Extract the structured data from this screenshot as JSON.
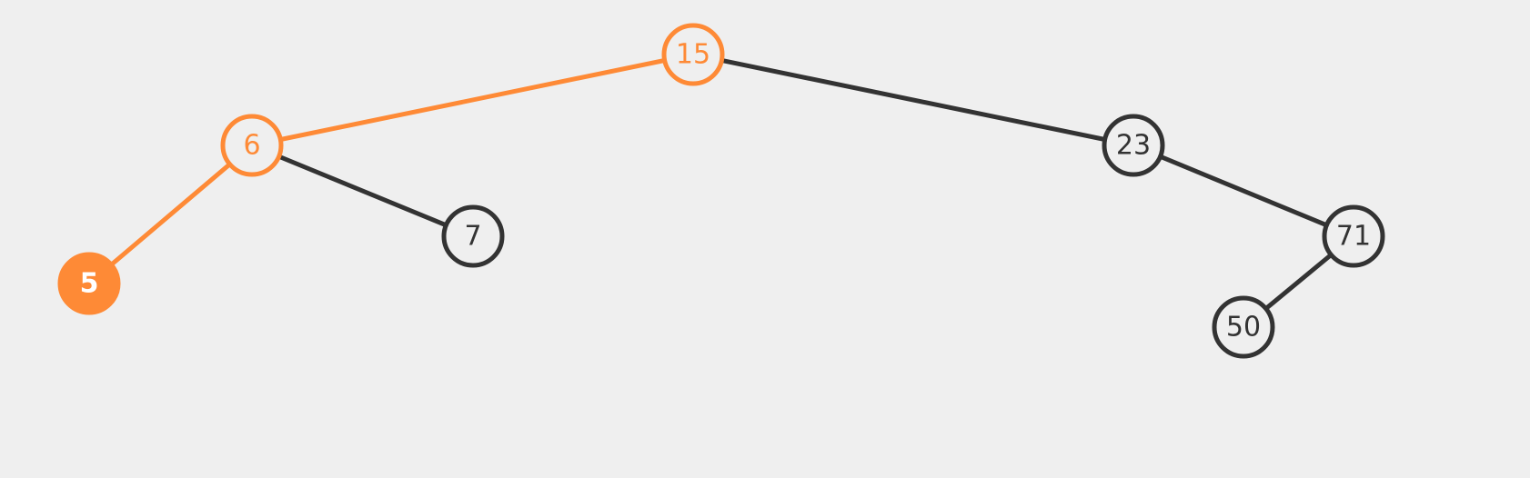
{
  "colors": {
    "background": "#efefef",
    "default": "#333333",
    "highlight": "#fe8a36",
    "active_text": "#ffffff"
  },
  "nodes": [
    {
      "id": "n15",
      "label": "15",
      "state": "path"
    },
    {
      "id": "n6",
      "label": "6",
      "state": "path"
    },
    {
      "id": "n23",
      "label": "23",
      "state": "default"
    },
    {
      "id": "n5",
      "label": "5",
      "state": "active"
    },
    {
      "id": "n7",
      "label": "7",
      "state": "default"
    },
    {
      "id": "n71",
      "label": "71",
      "state": "default"
    },
    {
      "id": "n50",
      "label": "50",
      "state": "default"
    }
  ],
  "edges": [
    {
      "from": "n15",
      "to": "n6",
      "state": "path"
    },
    {
      "from": "n15",
      "to": "n23",
      "state": "default"
    },
    {
      "from": "n6",
      "to": "n5",
      "state": "path"
    },
    {
      "from": "n6",
      "to": "n7",
      "state": "default"
    },
    {
      "from": "n23",
      "to": "n71",
      "state": "default"
    },
    {
      "from": "n71",
      "to": "n50",
      "state": "default"
    }
  ]
}
